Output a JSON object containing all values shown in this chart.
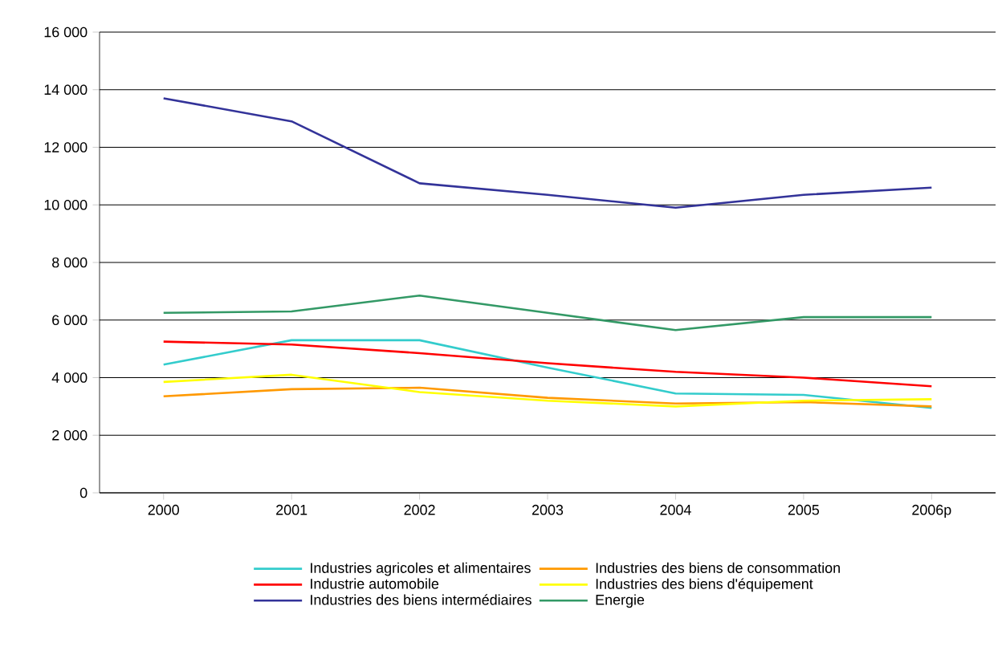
{
  "chart_data": {
    "type": "line",
    "categories": [
      "2000",
      "2001",
      "2002",
      "2003",
      "2004",
      "2005",
      "2006p"
    ],
    "series": [
      {
        "name": "Industries agricoles et alimentaires",
        "color": "#33cccc",
        "values": [
          4450,
          5300,
          5300,
          4350,
          3450,
          3400,
          2950
        ]
      },
      {
        "name": "Industries des biens de consommation",
        "color": "#ff9900",
        "values": [
          3350,
          3600,
          3650,
          3300,
          3100,
          3150,
          3000
        ]
      },
      {
        "name": "Industrie automobile",
        "color": "#ff0000",
        "values": [
          5250,
          5150,
          4850,
          4500,
          4200,
          4000,
          3700
        ]
      },
      {
        "name": "Industries des biens d'équipement",
        "color": "#ffff00",
        "values": [
          3850,
          4100,
          3500,
          3200,
          3000,
          3200,
          3250
        ]
      },
      {
        "name": "Industries des biens intermédiaires",
        "color": "#333399",
        "values": [
          13700,
          12900,
          10750,
          10350,
          9900,
          10350,
          10600
        ]
      },
      {
        "name": "Energie",
        "color": "#339966",
        "values": [
          6250,
          6300,
          6850,
          6250,
          5650,
          6100,
          6100
        ]
      }
    ],
    "ylim": [
      0,
      16000
    ],
    "yticks": [
      0,
      {
        "value": 2000,
        "label": "2 000"
      },
      {
        "value": 4000,
        "label": "4 000"
      },
      {
        "value": 6000,
        "label": "6 000"
      },
      {
        "value": 8000,
        "label": "8 000"
      },
      {
        "value": 10000,
        "label": "10 000"
      },
      {
        "value": 12000,
        "label": "12 000"
      },
      {
        "value": 14000,
        "label": "14 000"
      },
      {
        "value": 16000,
        "label": "16 000"
      }
    ],
    "grid": "y",
    "legend": "bottom",
    "marker": "none",
    "line_style": "solid"
  }
}
